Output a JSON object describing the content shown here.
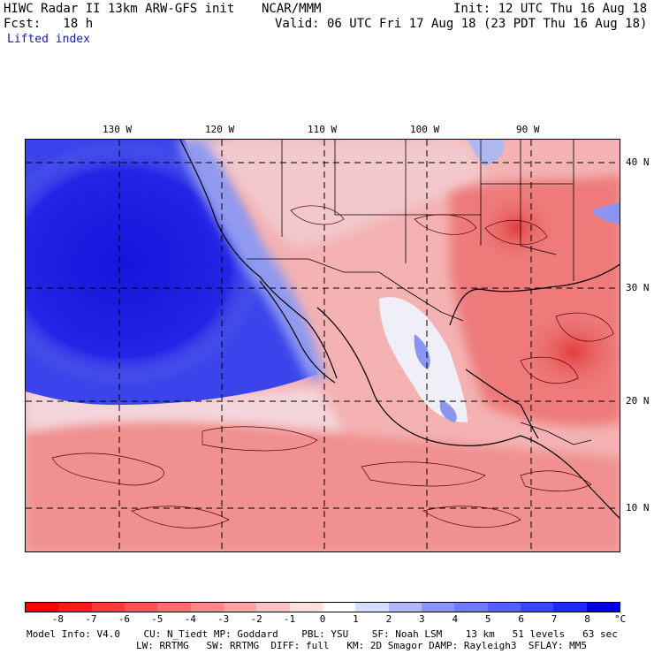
{
  "header": {
    "title_left": "HIWC Radar II 13km ARW-GFS init",
    "org": "NCAR/MMM",
    "init": "Init: 12 UTC Thu 16 Aug 18",
    "fcst": "Fcst:   18 h",
    "valid": "Valid: 06 UTC Fri 17 Aug 18 (23 PDT Thu 16 Aug 18)",
    "field": "Lifted index"
  },
  "map": {
    "lon_labels": [
      "130 W",
      "120 W",
      "110 W",
      "100 W",
      "90 W"
    ],
    "lat_labels": [
      "40 N",
      "30 N",
      "20 N",
      "10 N"
    ],
    "colors": {
      "ocean_stable": "#1a1ae8",
      "stable_light": "#8f9af0",
      "neutral": "#f6eef0",
      "unstable_light": "#f2a8a8",
      "unstable": "#ec7878",
      "unstable_strong": "#e04848"
    }
  },
  "colorbar": {
    "ticks": [
      "-8",
      "-7",
      "-6",
      "-5",
      "-4",
      "-3",
      "-2",
      "-1",
      "0",
      "1",
      "2",
      "3",
      "4",
      "5",
      "6",
      "7",
      "8"
    ],
    "unit": "°C",
    "colors": [
      "#ff0000",
      "#ff1a1a",
      "#ff3838",
      "#ff5353",
      "#ff6d6d",
      "#ff8787",
      "#ffa3a3",
      "#ffc0c0",
      "#ffe0e0",
      "#ffffff",
      "#d8dcff",
      "#b0b8ff",
      "#8a95ff",
      "#6f7bff",
      "#5360ff",
      "#3846ff",
      "#1c2aff",
      "#0000e6"
    ]
  },
  "footer": {
    "line1": "Model Info: V4.0    CU: N_Tiedt MP: Goddard    PBL: YSU    SF: Noah LSM    13 km   51 levels   63 sec",
    "line2": "LW: RRTMG   SW: RRTMG  DIFF: full   KM: 2D Smagor DAMP: Rayleigh3  SFLAY: MM5"
  }
}
